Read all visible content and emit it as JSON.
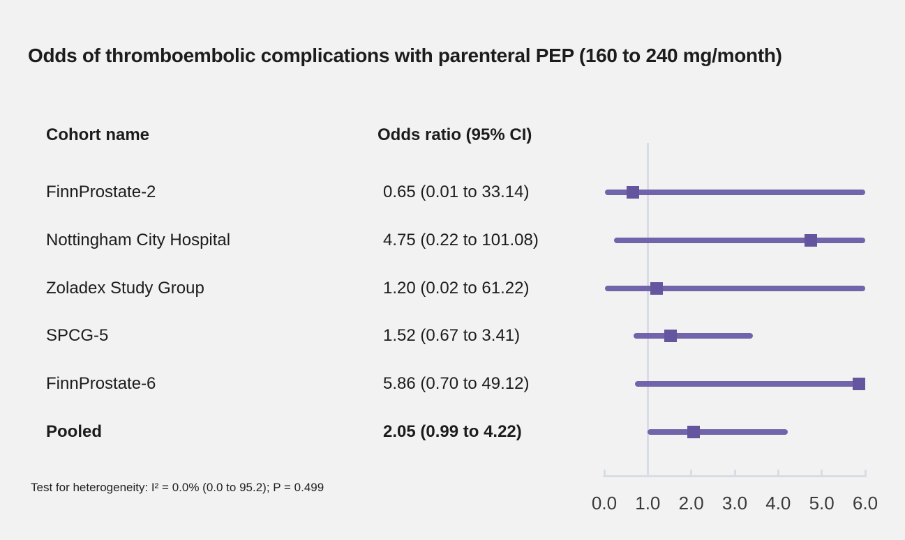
{
  "title": "Odds of thromboembolic complications with parenteral PEP (160 to 240 mg/month)",
  "columns": {
    "cohort": "Cohort name",
    "odds_ratio": "Odds ratio (95% CI)"
  },
  "footer": "Test for heterogeneity: I² = 0.0% (0.0 to 95.2); P = 0.499",
  "colors": {
    "background": "#f2f2f2",
    "text": "#1c1c1c",
    "ci_line": "#7164ab",
    "marker": "#64559f",
    "axis": "#d8dce4"
  },
  "chart_data": {
    "type": "scatter",
    "subtype": "forest-plot",
    "title": "Odds of thromboembolic complications with parenteral PEP (160 to 240 mg/month)",
    "columns": [
      "Cohort name",
      "Odds ratio (95% CI)"
    ],
    "rows": [
      {
        "cohort": "FinnProstate-2",
        "label": "0.65 (0.01 to 33.14)",
        "or": 0.65,
        "ci_low": 0.01,
        "ci_high": 33.14,
        "bold": false
      },
      {
        "cohort": "Nottingham City Hospital",
        "label": "4.75 (0.22 to 101.08)",
        "or": 4.75,
        "ci_low": 0.22,
        "ci_high": 101.08,
        "bold": false
      },
      {
        "cohort": "Zoladex Study Group",
        "label": "1.20 (0.02 to 61.22)",
        "or": 1.2,
        "ci_low": 0.02,
        "ci_high": 61.22,
        "bold": false
      },
      {
        "cohort": "SPCG-5",
        "label": "1.52 (0.67 to 3.41)",
        "or": 1.52,
        "ci_low": 0.67,
        "ci_high": 3.41,
        "bold": false
      },
      {
        "cohort": "FinnProstate-6",
        "label": "5.86 (0.70 to 49.12)",
        "or": 5.86,
        "ci_low": 0.7,
        "ci_high": 49.12,
        "bold": false
      },
      {
        "cohort": "Pooled",
        "label": "2.05 (0.99 to 4.22)",
        "or": 2.05,
        "ci_low": 0.99,
        "ci_high": 4.22,
        "bold": true
      }
    ],
    "x_axis": {
      "min": 0,
      "max": 6,
      "ticks": [
        "0.0",
        "1.0",
        "2.0",
        "3.0",
        "4.0",
        "5.0",
        "6.0"
      ],
      "reference_line": 1.0,
      "grid": false,
      "note": "CI bars extending beyond x max are clipped at 6.0"
    },
    "heterogeneity": "Test for heterogeneity: I² = 0.0% (0.0 to 95.2); P = 0.499"
  }
}
